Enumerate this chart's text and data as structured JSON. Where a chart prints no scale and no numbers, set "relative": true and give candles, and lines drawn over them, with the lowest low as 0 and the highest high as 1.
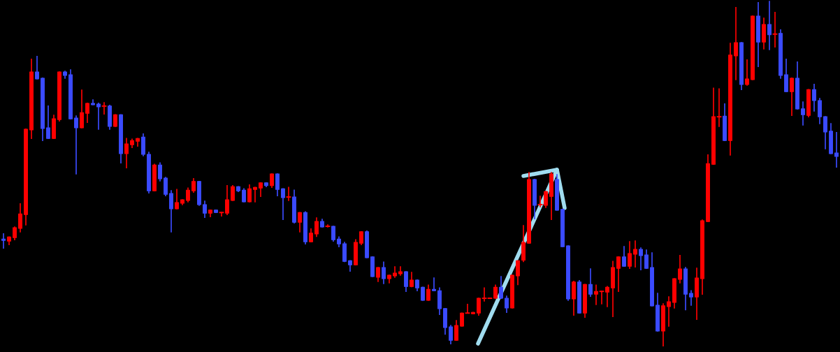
{
  "chart_data": {
    "type": "candlestick",
    "relative": true,
    "categories": [
      null,
      null,
      null,
      null,
      null,
      null,
      null,
      null,
      null,
      null,
      null,
      null,
      null,
      null,
      null,
      null,
      null,
      null,
      null,
      null,
      null,
      null,
      null,
      null,
      null,
      null,
      null,
      null,
      null,
      null,
      null,
      null,
      null,
      null,
      null,
      null,
      null,
      null,
      null,
      null,
      null,
      null,
      null,
      null,
      null,
      null,
      null,
      null,
      null,
      null,
      null,
      null,
      null,
      null,
      null,
      null,
      null,
      null,
      null,
      null,
      null,
      null,
      null,
      null,
      null,
      null,
      null,
      null,
      null,
      null,
      null,
      null,
      null,
      null,
      null,
      null,
      null,
      null,
      null,
      null,
      null,
      null,
      null,
      null,
      null,
      null,
      null,
      null,
      null,
      null,
      null,
      null,
      null,
      null,
      null,
      null,
      null,
      null,
      null,
      null,
      null,
      null,
      null,
      null,
      null,
      null,
      null,
      null,
      null,
      null,
      null,
      null,
      null,
      null,
      null,
      null,
      null,
      null,
      null,
      null,
      null,
      null,
      null,
      null,
      null,
      null,
      null,
      null,
      null,
      null,
      null,
      null,
      null,
      null,
      null,
      null,
      null,
      null,
      null,
      null,
      null,
      null,
      null,
      null,
      null,
      null,
      null,
      null,
      null,
      null
    ],
    "ohlc": [
      [
        0.31,
        0.325,
        0.284,
        0.306
      ],
      [
        0.304,
        0.316,
        0.294,
        0.316
      ],
      [
        0.314,
        0.345,
        0.308,
        0.343
      ],
      [
        0.341,
        0.412,
        0.331,
        0.383
      ],
      [
        0.381,
        0.629,
        0.351,
        0.629
      ],
      [
        0.627,
        0.832,
        0.602,
        0.795
      ],
      [
        0.795,
        0.84,
        0.775,
        0.775
      ],
      [
        0.777,
        0.777,
        0.596,
        0.631
      ],
      [
        0.633,
        0.696,
        0.602,
        0.602
      ],
      [
        0.602,
        0.669,
        0.602,
        0.659
      ],
      [
        0.657,
        0.795,
        0.653,
        0.795
      ],
      [
        0.795,
        0.797,
        0.777,
        0.785
      ],
      [
        0.787,
        0.801,
        0.659,
        0.659
      ],
      [
        0.661,
        0.667,
        0.499,
        0.633
      ],
      [
        0.633,
        0.742,
        0.633,
        0.677
      ],
      [
        0.675,
        0.704,
        0.649,
        0.704
      ],
      [
        0.704,
        0.714,
        0.7,
        0.7
      ],
      [
        0.702,
        0.704,
        0.629,
        0.694
      ],
      [
        0.696,
        0.706,
        0.673,
        0.696
      ],
      [
        0.696,
        0.698,
        0.629,
        0.637
      ],
      [
        0.637,
        0.671,
        0.637,
        0.671
      ],
      [
        0.671,
        0.671,
        0.531,
        0.558
      ],
      [
        0.558,
        0.602,
        0.517,
        0.586
      ],
      [
        0.584,
        0.6,
        0.576,
        0.596
      ],
      [
        0.594,
        0.602,
        0.58,
        0.602
      ],
      [
        0.606,
        0.615,
        0.552,
        0.556
      ],
      [
        0.556,
        0.562,
        0.444,
        0.45
      ],
      [
        0.45,
        0.527,
        0.45,
        0.525
      ],
      [
        0.525,
        0.531,
        0.479,
        0.485
      ],
      [
        0.487,
        0.489,
        0.436,
        0.44
      ],
      [
        0.442,
        0.45,
        0.331,
        0.398
      ],
      [
        0.398,
        0.454,
        0.398,
        0.416
      ],
      [
        0.414,
        0.424,
        0.41,
        0.424
      ],
      [
        0.422,
        0.458,
        0.418,
        0.452
      ],
      [
        0.45,
        0.485,
        0.446,
        0.477
      ],
      [
        0.477,
        0.477,
        0.408,
        0.41
      ],
      [
        0.41,
        0.42,
        0.373,
        0.385
      ],
      [
        0.385,
        0.394,
        0.375,
        0.394
      ],
      [
        0.394,
        0.394,
        0.387,
        0.387
      ],
      [
        0.387,
        0.387,
        0.377,
        0.387
      ],
      [
        0.385,
        0.465,
        0.381,
        0.424
      ],
      [
        0.422,
        0.465,
        0.422,
        0.462
      ],
      [
        0.462,
        0.462,
        0.448,
        0.45
      ],
      [
        0.452,
        0.456,
        0.418,
        0.418
      ],
      [
        0.418,
        0.467,
        0.418,
        0.456
      ],
      [
        0.454,
        0.46,
        0.418,
        0.46
      ],
      [
        0.458,
        0.473,
        0.434,
        0.473
      ],
      [
        0.473,
        0.473,
        0.462,
        0.465
      ],
      [
        0.465,
        0.499,
        0.46,
        0.499
      ],
      [
        0.499,
        0.499,
        0.436,
        0.454
      ],
      [
        0.456,
        0.456,
        0.367,
        0.43
      ],
      [
        0.432,
        0.46,
        0.422,
        0.432
      ],
      [
        0.432,
        0.452,
        0.357,
        0.359
      ],
      [
        0.359,
        0.387,
        0.331,
        0.387
      ],
      [
        0.387,
        0.389,
        0.296,
        0.302
      ],
      [
        0.302,
        0.339,
        0.302,
        0.327
      ],
      [
        0.325,
        0.371,
        0.318,
        0.361
      ],
      [
        0.361,
        0.367,
        0.345,
        0.345
      ],
      [
        0.347,
        0.351,
        0.345,
        0.347
      ],
      [
        0.347,
        0.347,
        0.304,
        0.308
      ],
      [
        0.31,
        0.316,
        0.288,
        0.296
      ],
      [
        0.296,
        0.3,
        0.245,
        0.245
      ],
      [
        0.247,
        0.247,
        0.217,
        0.235
      ],
      [
        0.235,
        0.308,
        0.235,
        0.3
      ],
      [
        0.298,
        0.331,
        0.294,
        0.331
      ],
      [
        0.331,
        0.333,
        0.256,
        0.256
      ],
      [
        0.258,
        0.258,
        0.201,
        0.201
      ],
      [
        0.199,
        0.227,
        0.187,
        0.227
      ],
      [
        0.227,
        0.243,
        0.181,
        0.195
      ],
      [
        0.195,
        0.205,
        0.183,
        0.205
      ],
      [
        0.203,
        0.229,
        0.199,
        0.211
      ],
      [
        0.209,
        0.229,
        0.205,
        0.215
      ],
      [
        0.215,
        0.215,
        0.158,
        0.172
      ],
      [
        0.172,
        0.213,
        0.172,
        0.191
      ],
      [
        0.191,
        0.191,
        0.16,
        0.168
      ],
      [
        0.17,
        0.17,
        0.132,
        0.132
      ],
      [
        0.132,
        0.176,
        0.132,
        0.164
      ],
      [
        0.164,
        0.197,
        0.16,
        0.16
      ],
      [
        0.16,
        0.168,
        0.091,
        0.108
      ],
      [
        0.108,
        0.108,
        0.034,
        0.053
      ],
      [
        0.055,
        0.059,
        0.006,
        0.016
      ],
      [
        0.016,
        0.073,
        0.016,
        0.059
      ],
      [
        0.057,
        0.095,
        0.057,
        0.095
      ],
      [
        0.095,
        0.12,
        0.095,
        0.095
      ],
      [
        0.093,
        0.097,
        0.093,
        0.097
      ],
      [
        0.095,
        0.138,
        0.089,
        0.138
      ],
      [
        0.138,
        0.168,
        0.13,
        0.138
      ],
      [
        0.138,
        0.138,
        0.138,
        0.138
      ],
      [
        0.138,
        0.176,
        0.138,
        0.17
      ],
      [
        0.17,
        0.201,
        0.138,
        0.138
      ],
      [
        0.138,
        0.144,
        0.097,
        0.11
      ],
      [
        0.11,
        0.205,
        0.11,
        0.205
      ],
      [
        0.203,
        0.247,
        0.178,
        0.247
      ],
      [
        0.249,
        0.349,
        0.245,
        0.3
      ],
      [
        0.298,
        0.503,
        0.298,
        0.483
      ],
      [
        0.483,
        0.483,
        0.369,
        0.408
      ],
      [
        0.41,
        0.434,
        0.404,
        0.41
      ],
      [
        0.408,
        0.448,
        0.402,
        0.448
      ],
      [
        0.434,
        0.503,
        0.367,
        0.499
      ],
      [
        0.483,
        0.497,
        0.394,
        0.394
      ],
      [
        0.396,
        0.396,
        0.288,
        0.288
      ],
      [
        0.29,
        0.29,
        0.132,
        0.136
      ],
      [
        0.136,
        0.187,
        0.089,
        0.185
      ],
      [
        0.185,
        0.189,
        0.095,
        0.095
      ],
      [
        0.095,
        0.178,
        0.083,
        0.178
      ],
      [
        0.178,
        0.223,
        0.144,
        0.15
      ],
      [
        0.15,
        0.176,
        0.12,
        0.158
      ],
      [
        0.158,
        0.158,
        0.122,
        0.158
      ],
      [
        0.156,
        0.172,
        0.114,
        0.17
      ],
      [
        0.168,
        0.245,
        0.085,
        0.227
      ],
      [
        0.225,
        0.258,
        0.158,
        0.258
      ],
      [
        0.258,
        0.288,
        0.231,
        0.231
      ],
      [
        0.231,
        0.302,
        0.225,
        0.268
      ],
      [
        0.266,
        0.304,
        0.229,
        0.28
      ],
      [
        0.28,
        0.284,
        0.221,
        0.262
      ],
      [
        0.264,
        0.278,
        0.225,
        0.225
      ],
      [
        0.227,
        0.27,
        0.116,
        0.116
      ],
      [
        0.118,
        0.152,
        0.043,
        0.043
      ],
      [
        0.043,
        0.122,
        0,
        0.116
      ],
      [
        0.114,
        0.142,
        0.057,
        0.128
      ],
      [
        0.126,
        0.195,
        0.11,
        0.195
      ],
      [
        0.193,
        0.262,
        0.183,
        0.223
      ],
      [
        0.223,
        0.227,
        0.105,
        0.15
      ],
      [
        0.152,
        0.16,
        0.118,
        0.142
      ],
      [
        0.142,
        0.225,
        0.077,
        0.197
      ],
      [
        0.195,
        0.365,
        0.15,
        0.363
      ],
      [
        0.361,
        0.554,
        0.361,
        0.529
      ],
      [
        0.527,
        0.748,
        0.527,
        0.665
      ],
      [
        0.665,
        0.746,
        0.637,
        0.665
      ],
      [
        0.667,
        0.702,
        0.596,
        0.596
      ],
      [
        0.596,
        0.878,
        0.554,
        0.844
      ],
      [
        0.842,
        0.982,
        0.773,
        0.88
      ],
      [
        0.88,
        0.88,
        0.744,
        0.759
      ],
      [
        0.759,
        0.83,
        0.757,
        0.775
      ],
      [
        0.773,
        0.957,
        0.773,
        0.957
      ],
      [
        0.957,
        0.996,
        0.811,
        0.882
      ],
      [
        0.882,
        0.951,
        0.862,
        0.933
      ],
      [
        0.933,
        1,
        0.86,
        0.903
      ],
      [
        0.905,
        0.968,
        0.868,
        0.905
      ],
      [
        0.907,
        0.917,
        0.777,
        0.785
      ],
      [
        0.787,
        0.832,
        0.738,
        0.738
      ],
      [
        0.738,
        0.777,
        0.669,
        0.777
      ],
      [
        0.777,
        0.824,
        0.688,
        0.688
      ],
      [
        0.688,
        0.708,
        0.641,
        0.671
      ],
      [
        0.669,
        0.744,
        0.665,
        0.744
      ],
      [
        0.744,
        0.759,
        0.682,
        0.712
      ],
      [
        0.712,
        0.718,
        0.645,
        0.665
      ],
      [
        0.665,
        0.665,
        0.572,
        0.621
      ],
      [
        0.623,
        0.645,
        0.558,
        0.558
      ],
      [
        0.56,
        0.619,
        0.519,
        0.55
      ]
    ],
    "colors": [
      "#3b4bff",
      "#ff0000",
      "#ff0000",
      "#ff0000",
      "#ff0000",
      "#ff0000",
      "#3b4bff",
      "#3b4bff",
      "#3b4bff",
      "#ff0000",
      "#ff0000",
      "#3b4bff",
      "#3b4bff",
      "#3b4bff",
      "#ff0000",
      "#ff0000",
      "#3b4bff",
      "#3b4bff",
      "#ff0000",
      "#3b4bff",
      "#ff0000",
      "#3b4bff",
      "#ff0000",
      "#ff0000",
      "#ff0000",
      "#3b4bff",
      "#3b4bff",
      "#ff0000",
      "#3b4bff",
      "#3b4bff",
      "#3b4bff",
      "#ff0000",
      "#ff0000",
      "#ff0000",
      "#ff0000",
      "#3b4bff",
      "#3b4bff",
      "#ff0000",
      "#3b4bff",
      "#ff0000",
      "#ff0000",
      "#ff0000",
      "#3b4bff",
      "#3b4bff",
      "#ff0000",
      "#ff0000",
      "#ff0000",
      "#3b4bff",
      "#ff0000",
      "#3b4bff",
      "#3b4bff",
      "#ff0000",
      "#3b4bff",
      "#ff0000",
      "#3b4bff",
      "#ff0000",
      "#ff0000",
      "#3b4bff",
      "#ff0000",
      "#3b4bff",
      "#3b4bff",
      "#3b4bff",
      "#3b4bff",
      "#ff0000",
      "#ff0000",
      "#3b4bff",
      "#3b4bff",
      "#ff0000",
      "#3b4bff",
      "#ff0000",
      "#ff0000",
      "#ff0000",
      "#3b4bff",
      "#ff0000",
      "#3b4bff",
      "#3b4bff",
      "#ff0000",
      "#3b4bff",
      "#3b4bff",
      "#3b4bff",
      "#3b4bff",
      "#ff0000",
      "#ff0000",
      "#ff0000",
      "#ff0000",
      "#ff0000",
      "#ff0000",
      "#ff0000",
      "#ff0000",
      "#3b4bff",
      "#3b4bff",
      "#ff0000",
      "#ff0000",
      "#ff0000",
      "#ff0000",
      "#3b4bff",
      "#ff0000",
      "#ff0000",
      "#ff0000",
      "#3b4bff",
      "#3b4bff",
      "#3b4bff",
      "#ff0000",
      "#3b4bff",
      "#ff0000",
      "#3b4bff",
      "#ff0000",
      "#ff0000",
      "#ff0000",
      "#ff0000",
      "#ff0000",
      "#3b4bff",
      "#ff0000",
      "#ff0000",
      "#3b4bff",
      "#3b4bff",
      "#3b4bff",
      "#3b4bff",
      "#ff0000",
      "#ff0000",
      "#ff0000",
      "#ff0000",
      "#3b4bff",
      "#3b4bff",
      "#ff0000",
      "#ff0000",
      "#ff0000",
      "#ff0000",
      "#ff0000",
      "#3b4bff",
      "#ff0000",
      "#ff0000",
      "#3b4bff",
      "#ff0000",
      "#ff0000",
      "#3b4bff",
      "#ff0000",
      "#3b4bff",
      "#ff0000",
      "#3b4bff",
      "#3b4bff",
      "#ff0000",
      "#3b4bff",
      "#3b4bff",
      "#ff0000",
      "#3b4bff",
      "#3b4bff",
      "#3b4bff",
      "#3b4bff",
      "#3b4bff"
    ]
  }
}
